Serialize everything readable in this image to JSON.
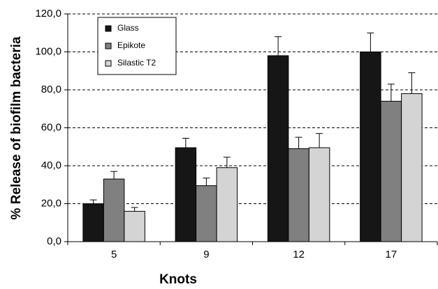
{
  "chart_data": {
    "type": "bar",
    "x_label": "Knots",
    "y_label": "% Release of biofilm bacteria",
    "categories": [
      "5",
      "9",
      "12",
      "17"
    ],
    "series": [
      {
        "name": "Glass",
        "color": "#161616",
        "values": [
          20,
          49.5,
          98,
          100
        ],
        "errors": [
          2,
          5,
          10,
          10
        ]
      },
      {
        "name": "Epikote",
        "color": "#808080",
        "values": [
          33,
          29.5,
          49,
          74
        ],
        "errors": [
          4,
          4,
          6,
          9
        ]
      },
      {
        "name": "Silastic T2",
        "color": "#d4d4d4",
        "values": [
          16,
          39,
          49.5,
          78
        ],
        "errors": [
          2,
          5.5,
          7.5,
          11
        ]
      }
    ],
    "ylim": [
      0,
      120
    ],
    "yticks": [
      {
        "value": 0,
        "label": "0,0"
      },
      {
        "value": 20,
        "label": "20,0"
      },
      {
        "value": 40,
        "label": "40,0"
      },
      {
        "value": 60,
        "label": "60,0"
      },
      {
        "value": 80,
        "label": "80,0"
      },
      {
        "value": 100,
        "label": "100,0"
      },
      {
        "value": 120,
        "label": "120,0"
      }
    ],
    "grid": true,
    "legend": "top-left"
  }
}
